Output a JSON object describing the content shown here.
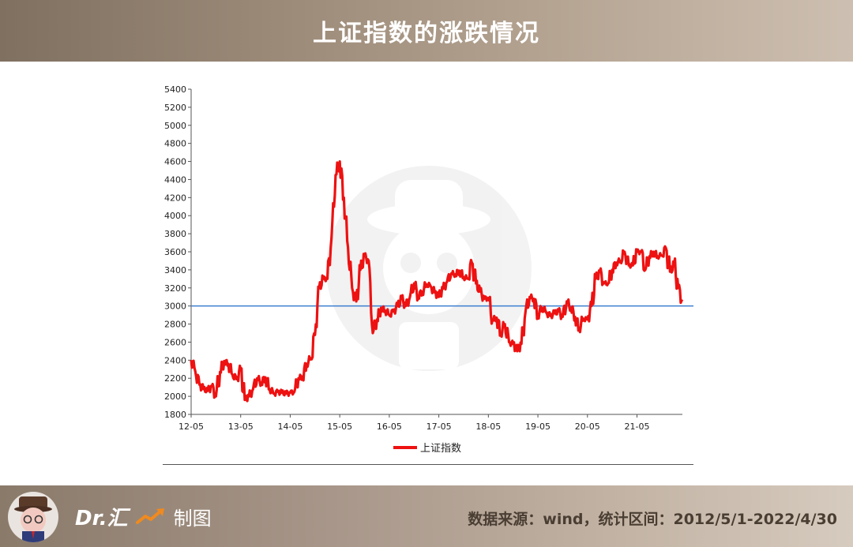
{
  "header": {
    "title": "上证指数的涨跌情况"
  },
  "footer": {
    "brand_name": "Dr.汇",
    "brand_suffix": "制图",
    "source": "数据来源：wind，统计区间：2012/5/1-2022/4/30"
  },
  "colors": {
    "series": "#ee1111",
    "reference_line": "#3b7fd0",
    "axis": "#555555",
    "header_bg": "#9e8c7a"
  },
  "icons": {
    "trend": "trend-up-arrow-icon",
    "avatar": "cartoon-avatar-icon",
    "watermark": "cartoon-avatar-watermark"
  },
  "chart_data": {
    "type": "line",
    "title": "",
    "xlabel": "",
    "ylabel": "",
    "ylim": [
      1800,
      5400
    ],
    "yticks": [
      1800,
      2000,
      2200,
      2400,
      2600,
      2800,
      3000,
      3200,
      3400,
      3600,
      3800,
      4000,
      4200,
      4400,
      4600,
      4800,
      5000,
      5200,
      5400
    ],
    "ytick_labels": [
      "1800",
      "2000",
      "2200",
      "2400",
      "2600",
      "2800",
      "3000",
      "3200",
      "3400",
      "3600",
      "3800",
      "4000",
      "4200",
      "4400",
      "4600",
      "4800",
      "5000",
      "5200",
      "5400"
    ],
    "xlim": [
      "2012-05",
      "2022-04"
    ],
    "xtick_labels": [
      "12-05",
      "13-05",
      "14-05",
      "15-05",
      "16-05",
      "17-05",
      "18-05",
      "19-05",
      "20-05",
      "21-05"
    ],
    "xtick_months": [
      "2012-05",
      "2013-05",
      "2014-05",
      "2015-05",
      "2016-05",
      "2017-05",
      "2018-05",
      "2019-05",
      "2020-05",
      "2021-05"
    ],
    "reference_line": {
      "y": 3000
    },
    "grid": false,
    "legend_position": "bottom-center",
    "series": [
      {
        "name": "上证指数",
        "x": [
          "2012-05",
          "2012-06",
          "2012-07",
          "2012-08",
          "2012-09",
          "2012-10",
          "2012-11",
          "2012-12",
          "2013-01",
          "2013-02",
          "2013-03",
          "2013-04",
          "2013-05",
          "2013-06",
          "2013-07",
          "2013-08",
          "2013-09",
          "2013-10",
          "2013-11",
          "2013-12",
          "2014-01",
          "2014-02",
          "2014-03",
          "2014-04",
          "2014-05",
          "2014-06",
          "2014-07",
          "2014-08",
          "2014-09",
          "2014-10",
          "2014-11",
          "2014-12",
          "2015-01",
          "2015-02",
          "2015-03",
          "2015-04",
          "2015-05",
          "2015-06",
          "2015-07",
          "2015-08",
          "2015-09",
          "2015-10",
          "2015-11",
          "2015-12",
          "2016-01",
          "2016-02",
          "2016-03",
          "2016-04",
          "2016-05",
          "2016-06",
          "2016-07",
          "2016-08",
          "2016-09",
          "2016-10",
          "2016-11",
          "2016-12",
          "2017-01",
          "2017-02",
          "2017-03",
          "2017-04",
          "2017-05",
          "2017-06",
          "2017-07",
          "2017-08",
          "2017-09",
          "2017-10",
          "2017-11",
          "2017-12",
          "2018-01",
          "2018-02",
          "2018-03",
          "2018-04",
          "2018-05",
          "2018-06",
          "2018-07",
          "2018-08",
          "2018-09",
          "2018-10",
          "2018-11",
          "2018-12",
          "2019-01",
          "2019-02",
          "2019-03",
          "2019-04",
          "2019-05",
          "2019-06",
          "2019-07",
          "2019-08",
          "2019-09",
          "2019-10",
          "2019-11",
          "2019-12",
          "2020-01",
          "2020-02",
          "2020-03",
          "2020-04",
          "2020-05",
          "2020-06",
          "2020-07",
          "2020-08",
          "2020-09",
          "2020-10",
          "2020-11",
          "2020-12",
          "2021-01",
          "2021-02",
          "2021-03",
          "2021-04",
          "2021-05",
          "2021-06",
          "2021-07",
          "2021-08",
          "2021-09",
          "2021-10",
          "2021-11",
          "2021-12",
          "2022-01",
          "2022-02",
          "2022-03",
          "2022-04"
        ],
        "values": [
          2400,
          2280,
          2130,
          2080,
          2060,
          2110,
          2000,
          2270,
          2390,
          2360,
          2240,
          2190,
          2300,
          1960,
          2000,
          2080,
          2200,
          2150,
          2210,
          2080,
          2030,
          2050,
          2040,
          2030,
          2040,
          2050,
          2200,
          2220,
          2360,
          2420,
          2680,
          3200,
          3300,
          3300,
          3750,
          4450,
          4600,
          4200,
          3650,
          3200,
          3050,
          3400,
          3550,
          3500,
          2700,
          2850,
          2980,
          2950,
          2900,
          2940,
          3000,
          3080,
          3000,
          3100,
          3250,
          3110,
          3160,
          3240,
          3220,
          3150,
          3100,
          3190,
          3270,
          3360,
          3350,
          3390,
          3320,
          3300,
          3480,
          3250,
          3160,
          3080,
          3090,
          2850,
          2870,
          2700,
          2800,
          2600,
          2580,
          2500,
          2580,
          2940,
          3100,
          3080,
          2900,
          2980,
          2930,
          2890,
          2920,
          2940,
          2880,
          3050,
          2980,
          2880,
          2750,
          2860,
          2850,
          3000,
          3300,
          3380,
          3250,
          3250,
          3400,
          3480,
          3500,
          3600,
          3450,
          3450,
          3600,
          3600,
          3400,
          3550,
          3600,
          3550,
          3560,
          3640,
          3380,
          3460,
          3200,
          3050
        ]
      }
    ]
  }
}
